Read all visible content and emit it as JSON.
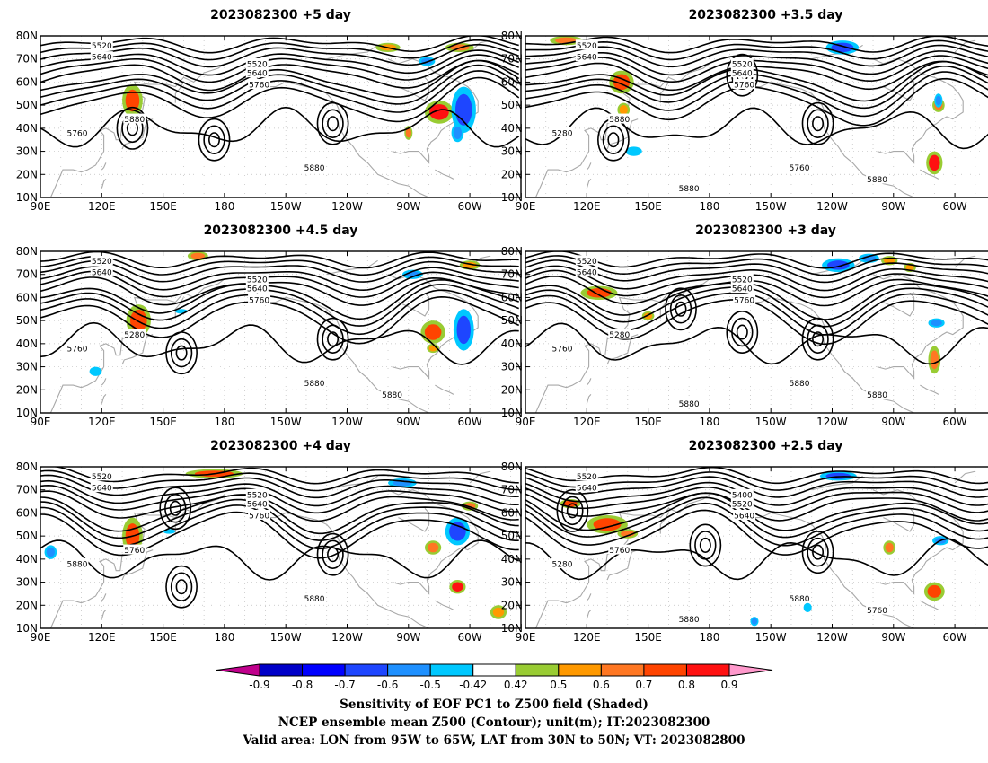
{
  "panels": [
    {
      "title": "2023082300  +5 day",
      "contour_labels": [
        "5520",
        "5640",
        "5520",
        "5640",
        "5760",
        "5880",
        "5760",
        "5880"
      ],
      "cold_centers": [
        [
          135,
          40
        ],
        [
          175,
          35
        ],
        [
          233,
          42
        ]
      ],
      "warm": [
        [
          135,
          52,
          5,
          7,
          0.7
        ],
        [
          285,
          47,
          7,
          5,
          0.8
        ],
        [
          295,
          75,
          7,
          2,
          0.6
        ],
        [
          260,
          75,
          6,
          2,
          0.5
        ],
        [
          270,
          38,
          2,
          3,
          0.6
        ]
      ],
      "cool": [
        [
          297,
          48,
          6,
          10,
          -0.7
        ],
        [
          279,
          69,
          4,
          2,
          -0.6
        ],
        [
          294,
          38,
          3,
          4,
          -0.6
        ]
      ]
    },
    {
      "title": "2023082300  +3.5 day",
      "contour_labels": [
        "5520",
        "5640",
        "5520",
        "5640",
        "5760",
        "5880",
        "5280",
        "5760",
        "5880",
        "5880"
      ],
      "cold_centers": [
        [
          196,
          63
        ],
        [
          233,
          42
        ],
        [
          133,
          35
        ]
      ],
      "warm": [
        [
          137,
          60,
          6,
          5,
          0.7
        ],
        [
          110,
          78,
          8,
          2,
          0.6
        ],
        [
          290,
          25,
          4,
          5,
          0.8
        ],
        [
          292,
          50,
          3,
          3,
          0.6
        ],
        [
          138,
          48,
          3,
          3,
          0.5
        ]
      ],
      "cool": [
        [
          245,
          75,
          8,
          3,
          -0.7
        ],
        [
          292,
          52,
          2,
          3,
          -0.6
        ],
        [
          143,
          30,
          4,
          2,
          -0.5
        ]
      ]
    },
    {
      "title": "2023082300  +4.5 day",
      "contour_labels": [
        "5520",
        "5640",
        "5520",
        "5640",
        "5760",
        "5280",
        "5760",
        "5880",
        "5880"
      ],
      "cold_centers": [
        [
          233,
          42
        ],
        [
          159,
          36
        ]
      ],
      "warm": [
        [
          138,
          50,
          6,
          7,
          0.7
        ],
        [
          282,
          45,
          6,
          5,
          0.7
        ],
        [
          300,
          74,
          5,
          2,
          0.5
        ],
        [
          167,
          78,
          5,
          2,
          0.6
        ],
        [
          282,
          38,
          3,
          2,
          0.5
        ]
      ],
      "cool": [
        [
          297,
          46,
          5,
          9,
          -0.7
        ],
        [
          272,
          70,
          5,
          2,
          -0.6
        ],
        [
          117,
          28,
          3,
          2,
          -0.5
        ],
        [
          159,
          54,
          3,
          1,
          -0.5
        ]
      ]
    },
    {
      "title": "2023082300  +3 day",
      "contour_labels": [
        "5520",
        "5640",
        "5520",
        "5640",
        "5760",
        "5280",
        "5760",
        "5880",
        "5880",
        "5880"
      ],
      "cold_centers": [
        [
          233,
          42
        ],
        [
          166,
          55
        ],
        [
          196,
          45
        ]
      ],
      "warm": [
        [
          126,
          62,
          9,
          3,
          0.7
        ],
        [
          290,
          33,
          3,
          6,
          0.6
        ],
        [
          268,
          76,
          4,
          2,
          0.5
        ],
        [
          278,
          73,
          3,
          2,
          0.5
        ],
        [
          150,
          52,
          3,
          2,
          0.5
        ]
      ],
      "cool": [
        [
          243,
          74,
          8,
          3,
          -0.7
        ],
        [
          291,
          49,
          4,
          2,
          -0.6
        ],
        [
          258,
          77,
          5,
          2,
          -0.6
        ]
      ]
    },
    {
      "title": "2023082300  +4 day",
      "contour_labels": [
        "5520",
        "5640",
        "5520",
        "5640",
        "5760",
        "5760",
        "5880",
        "5880"
      ],
      "cold_centers": [
        [
          233,
          42
        ],
        [
          156,
          62
        ],
        [
          159,
          28
        ]
      ],
      "warm": [
        [
          135,
          50,
          5,
          8,
          0.7
        ],
        [
          175,
          77,
          14,
          2,
          0.7
        ],
        [
          294,
          28,
          4,
          3,
          0.8
        ],
        [
          282,
          45,
          4,
          3,
          0.6
        ],
        [
          300,
          63,
          4,
          2,
          0.6
        ],
        [
          314,
          17,
          4,
          3,
          0.5
        ]
      ],
      "cool": [
        [
          294,
          52,
          6,
          6,
          -0.7
        ],
        [
          267,
          73,
          7,
          2,
          -0.6
        ],
        [
          95,
          43,
          3,
          3,
          -0.6
        ],
        [
          153,
          52,
          3,
          1,
          -0.5
        ]
      ]
    },
    {
      "title": "2023082300  +2.5 day",
      "contour_labels": [
        "5520",
        "5640",
        "5400",
        "5520",
        "5640",
        "5760",
        "5280",
        "5880",
        "5760",
        "5880"
      ],
      "cold_centers": [
        [
          233,
          43
        ],
        [
          178,
          46
        ],
        [
          113,
          61
        ]
      ],
      "warm": [
        [
          130,
          55,
          10,
          4,
          0.7
        ],
        [
          112,
          64,
          5,
          2,
          0.7
        ],
        [
          290,
          26,
          5,
          4,
          0.7
        ],
        [
          268,
          45,
          3,
          3,
          0.6
        ],
        [
          140,
          51,
          5,
          2,
          0.6
        ]
      ],
      "cool": [
        [
          243,
          76,
          9,
          2,
          -0.7
        ],
        [
          293,
          48,
          4,
          2,
          -0.6
        ],
        [
          202,
          13,
          2,
          2,
          -0.6
        ],
        [
          228,
          19,
          2,
          2,
          -0.5
        ]
      ]
    }
  ],
  "x_tick_labels": [
    "90E",
    "120E",
    "150E",
    "180",
    "150W",
    "120W",
    "90W",
    "60W"
  ],
  "y_tick_labels": [
    "10N",
    "20N",
    "30N",
    "40N",
    "50N",
    "60N",
    "70N",
    "80N"
  ],
  "colorbar": {
    "labels": [
      "-0.9",
      "-0.8",
      "-0.7",
      "-0.6",
      "-0.5",
      "-0.42",
      "0.42",
      "0.5",
      "0.6",
      "0.7",
      "0.8",
      "0.9"
    ],
    "levels": [
      -0.9,
      -0.8,
      -0.7,
      -0.6,
      -0.5,
      -0.42,
      0.42,
      0.5,
      0.6,
      0.7,
      0.8,
      0.9
    ],
    "colors": [
      "#c0008c",
      "#0000c8",
      "#0000ff",
      "#1e46ff",
      "#1e90ff",
      "#00c8ff",
      "#ffffff",
      "#99cc33",
      "#ff9900",
      "#ff7722",
      "#ff4400",
      "#ff1111",
      "#ff99cc"
    ]
  },
  "footer": [
    "Sensitivity of EOF PC1 to Z500 field (Shaded)",
    "NCEP ensemble mean Z500 (Contour); unit(m); IT:2023082300",
    "Valid area: LON from 95W to 65W, LAT from 30N to 50N; VT: 2023082800"
  ]
}
